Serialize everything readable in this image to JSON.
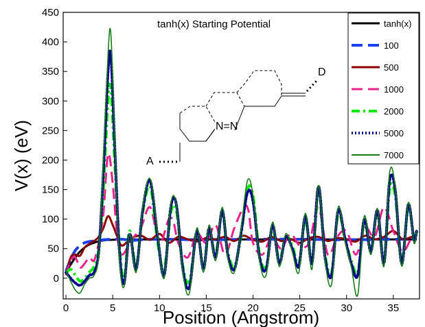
{
  "chart_data": {
    "type": "line",
    "title": "tanh(x) Starting Potential",
    "xlabel": "Position (Angstrom)",
    "ylabel": "V(x) (eV)",
    "xlim": [
      -0.3,
      37.8
    ],
    "ylim": [
      -35,
      450
    ],
    "xticks": [
      0,
      5,
      10,
      15,
      20,
      25,
      30,
      35
    ],
    "yticks": [
      0,
      50,
      100,
      150,
      200,
      250,
      300,
      350,
      400,
      450
    ],
    "legend_placement": "top-right",
    "grid": false,
    "series": [
      {
        "name": "tanh(x)",
        "color": "#000000",
        "style": "solid",
        "width": 3,
        "x": [
          0,
          0.5,
          1,
          1.5,
          2,
          2.5,
          3,
          3.5,
          4,
          5,
          6,
          8,
          10,
          15,
          20,
          25,
          30,
          35,
          37.5
        ],
        "y": [
          10,
          23,
          35,
          45,
          52,
          57,
          60,
          62.5,
          64,
          65,
          65.5,
          65.6,
          65.6,
          65.6,
          65.6,
          65.6,
          65.6,
          65.6,
          65.6
        ]
      },
      {
        "name": "100",
        "color": "#1a3ff0",
        "style": "dash",
        "width": 4,
        "x": [
          0,
          0.5,
          1,
          1.5,
          2,
          2.5,
          3,
          3.5,
          4,
          5,
          6,
          7,
          8,
          10,
          15,
          20,
          25,
          30,
          35,
          37.5
        ],
        "y": [
          12,
          32,
          47,
          55,
          60,
          62,
          63,
          64,
          65,
          66,
          66,
          64,
          65,
          66,
          65,
          66,
          66,
          65,
          66,
          66
        ]
      },
      {
        "name": "500",
        "color": "#8b0000",
        "style": "solid",
        "width": 3,
        "x": [
          0,
          0.5,
          1,
          1.5,
          2,
          2.5,
          3,
          3.5,
          4,
          4.5,
          5,
          5.5,
          6,
          7,
          8,
          9,
          10,
          11,
          12,
          13,
          14,
          15,
          16,
          17,
          18,
          19,
          20,
          21,
          22,
          23,
          24,
          25,
          26,
          27,
          28,
          29,
          30,
          31,
          32,
          33,
          34,
          35,
          36,
          37,
          37.5
        ],
        "y": [
          5,
          35,
          40,
          38,
          52,
          58,
          63,
          70,
          85,
          105,
          90,
          70,
          55,
          68,
          72,
          65,
          75,
          60,
          70,
          66,
          62,
          68,
          66,
          70,
          63,
          72,
          65,
          62,
          70,
          63,
          66,
          60,
          68,
          70,
          63,
          68,
          66,
          62,
          72,
          66,
          70,
          80,
          66,
          70,
          66
        ]
      },
      {
        "name": "1000",
        "color": "#e8208a",
        "style": "dash",
        "width": 3,
        "x": [
          0,
          0.5,
          1,
          1.5,
          2,
          2.5,
          3,
          3.5,
          4,
          4.5,
          5,
          5.5,
          6,
          7,
          8,
          9,
          10,
          11,
          11.5,
          12,
          13,
          14,
          15,
          16,
          17,
          18,
          19,
          19.5,
          20,
          21,
          22,
          23,
          24,
          25,
          26,
          27,
          28,
          29,
          30,
          31,
          32,
          33,
          34,
          35,
          36,
          37,
          37.5
        ],
        "y": [
          5,
          30,
          35,
          18,
          25,
          35,
          30,
          60,
          110,
          210,
          160,
          70,
          40,
          65,
          85,
          120,
          60,
          100,
          95,
          60,
          35,
          75,
          60,
          90,
          40,
          85,
          120,
          115,
          60,
          40,
          70,
          50,
          75,
          55,
          60,
          120,
          40,
          70,
          80,
          40,
          85,
          70,
          120,
          80,
          45,
          70,
          70
        ]
      },
      {
        "name": "2000",
        "color": "#00e800",
        "style": "dashdot",
        "width": 4,
        "x": [
          0,
          0.5,
          1,
          1.5,
          2,
          2.5,
          3,
          3.5,
          4,
          4.5,
          4.8,
          5.2,
          5.7,
          6.2,
          6.8,
          7.5,
          8.2,
          9,
          9.8,
          10.5,
          11.2,
          11.8,
          12.5,
          13.2,
          14,
          14.7,
          15.3,
          16,
          16.7,
          17.3,
          18,
          18.7,
          19.4,
          20,
          20.7,
          21.4,
          22.1,
          22.8,
          23.5,
          24.2,
          24.9,
          25.6,
          26.3,
          27,
          27.7,
          28.4,
          29.1,
          29.8,
          30.5,
          31.2,
          31.9,
          32.6,
          33.3,
          34,
          34.6,
          35.2,
          35.9,
          36.6,
          37.2,
          37.5
        ],
        "y": [
          8,
          15,
          5,
          -5,
          0,
          10,
          20,
          50,
          150,
          300,
          320,
          200,
          60,
          -5,
          80,
          20,
          110,
          155,
          60,
          15,
          110,
          115,
          20,
          -5,
          75,
          20,
          80,
          40,
          110,
          45,
          20,
          70,
          150,
          140,
          40,
          20,
          85,
          30,
          70,
          55,
          25,
          100,
          30,
          145,
          40,
          10,
          110,
          70,
          30,
          10,
          95,
          50,
          110,
          30,
          150,
          140,
          30,
          120,
          70,
          80
        ]
      },
      {
        "name": "5000",
        "color": "#00008b",
        "style": "dot",
        "width": 4,
        "x": [
          0,
          0.5,
          1,
          1.5,
          2,
          2.5,
          3,
          3.5,
          4,
          4.5,
          4.8,
          5.2,
          5.7,
          6.2,
          6.8,
          7.5,
          8.2,
          9,
          9.8,
          10.5,
          11.2,
          11.8,
          12.5,
          13.2,
          14,
          14.7,
          15.3,
          16,
          16.7,
          17.3,
          18,
          18.7,
          19.4,
          20,
          20.7,
          21.4,
          22.1,
          22.8,
          23.5,
          24.2,
          24.9,
          25.6,
          26.3,
          27,
          27.7,
          28.4,
          29.1,
          29.8,
          30.5,
          31.2,
          31.9,
          32.6,
          33.3,
          34,
          34.6,
          35.2,
          35.9,
          36.6,
          37.2,
          37.5
        ],
        "y": [
          10,
          0,
          -8,
          -12,
          -5,
          5,
          10,
          45,
          180,
          350,
          375,
          230,
          50,
          -10,
          75,
          15,
          115,
          165,
          70,
          5,
          120,
          125,
          15,
          -15,
          80,
          15,
          85,
          35,
          115,
          40,
          15,
          75,
          145,
          130,
          35,
          15,
          90,
          25,
          70,
          50,
          20,
          105,
          25,
          155,
          35,
          5,
          115,
          70,
          25,
          5,
          100,
          45,
          115,
          25,
          165,
          150,
          25,
          125,
          65,
          80
        ]
      },
      {
        "name": "7000",
        "color": "#1a7a1a",
        "style": "solid",
        "width": 1.6,
        "x": [
          0,
          0.5,
          1,
          1.5,
          2,
          2.5,
          3,
          3.5,
          4,
          4.5,
          4.8,
          5.2,
          5.7,
          6.2,
          6.8,
          7.5,
          8.2,
          9,
          9.8,
          10.5,
          11.2,
          11.8,
          12.5,
          13.2,
          14,
          14.7,
          15.3,
          16,
          16.7,
          17.3,
          18,
          18.7,
          19.4,
          20,
          20.7,
          21.4,
          22.1,
          22.8,
          23.5,
          24.2,
          24.9,
          25.6,
          26.3,
          27,
          27.7,
          28.4,
          29.1,
          29.8,
          30.5,
          31.2,
          31.9,
          32.6,
          33.3,
          34,
          34.6,
          35.2,
          35.9,
          36.6,
          37.2,
          37.5
        ],
        "y": [
          12,
          -5,
          -20,
          -25,
          -10,
          0,
          5,
          40,
          200,
          380,
          413,
          240,
          40,
          -15,
          75,
          10,
          120,
          168,
          75,
          0,
          125,
          125,
          10,
          -25,
          85,
          10,
          90,
          30,
          120,
          35,
          10,
          80,
          165,
          140,
          30,
          5,
          95,
          20,
          75,
          45,
          10,
          110,
          15,
          157,
          30,
          -10,
          120,
          65,
          20,
          -28,
          105,
          40,
          118,
          20,
          178,
          155,
          20,
          128,
          60,
          80
        ]
      }
    ]
  }
}
